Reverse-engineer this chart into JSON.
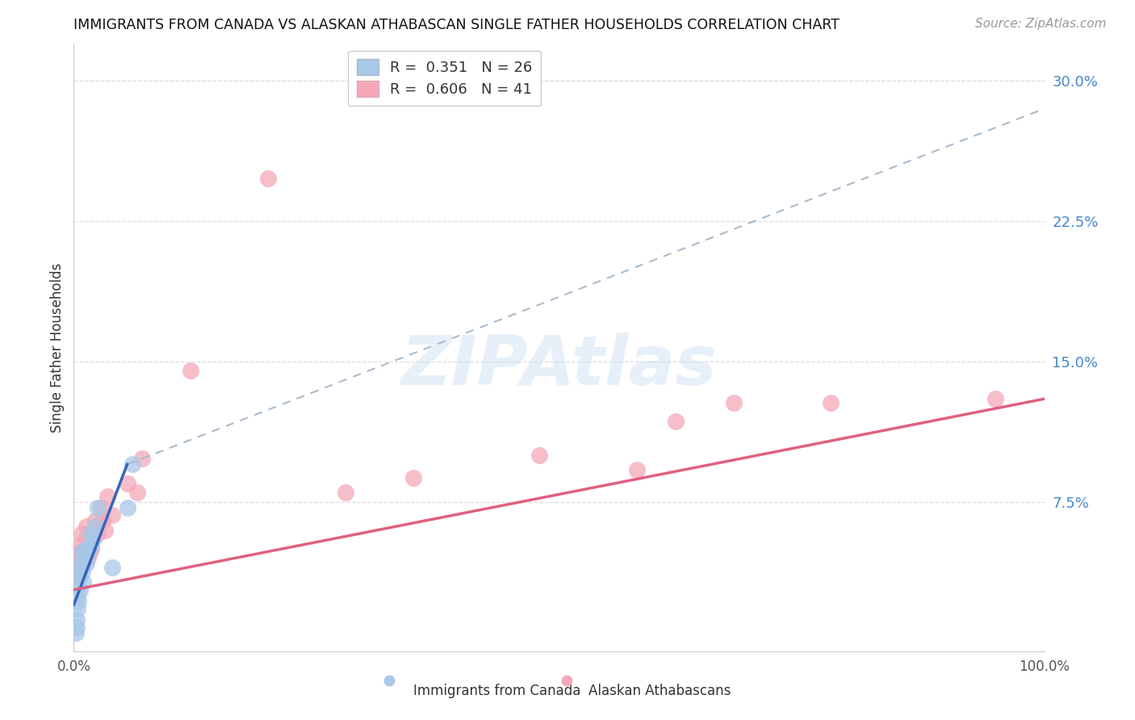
{
  "title": "IMMIGRANTS FROM CANADA VS ALASKAN ATHABASCAN SINGLE FATHER HOUSEHOLDS CORRELATION CHART",
  "source": "Source: ZipAtlas.com",
  "ylabel": "Single Father Households",
  "xlim": [
    0.0,
    1.0
  ],
  "ylim": [
    -0.005,
    0.32
  ],
  "y_tick_values_right": [
    0.075,
    0.15,
    0.225,
    0.3
  ],
  "y_tick_labels_right": [
    "7.5%",
    "15.0%",
    "22.5%",
    "30.0%"
  ],
  "x_tick_values": [
    0.0,
    1.0
  ],
  "x_tick_labels": [
    "0.0%",
    "100.0%"
  ],
  "legend_blue_label": "R =  0.351   N = 26",
  "legend_pink_label": "R =  0.606   N = 41",
  "blue_dot_color": "#A8C8E8",
  "pink_dot_color": "#F4A8B8",
  "blue_line_color": "#3366BB",
  "pink_line_color": "#E06080",
  "blue_dash_color": "#AABBCC",
  "watermark": "ZIPAtlas",
  "watermark_color": "#C5D8EE",
  "background_color": "#FFFFFF",
  "grid_color": "#DDDDDD",
  "blue_dots_x": [
    0.002,
    0.003,
    0.003,
    0.004,
    0.004,
    0.005,
    0.005,
    0.006,
    0.006,
    0.007,
    0.008,
    0.008,
    0.009,
    0.01,
    0.011,
    0.012,
    0.013,
    0.015,
    0.017,
    0.018,
    0.02,
    0.022,
    0.025,
    0.04,
    0.055,
    0.06
  ],
  "blue_dots_y": [
    0.005,
    0.008,
    0.012,
    0.018,
    0.025,
    0.022,
    0.03,
    0.028,
    0.035,
    0.04,
    0.042,
    0.048,
    0.038,
    0.032,
    0.045,
    0.05,
    0.042,
    0.048,
    0.058,
    0.052,
    0.055,
    0.062,
    0.072,
    0.04,
    0.072,
    0.095
  ],
  "pink_dots_x": [
    0.002,
    0.003,
    0.003,
    0.004,
    0.005,
    0.005,
    0.006,
    0.006,
    0.007,
    0.008,
    0.008,
    0.009,
    0.01,
    0.011,
    0.012,
    0.013,
    0.015,
    0.016,
    0.017,
    0.018,
    0.02,
    0.022,
    0.025,
    0.028,
    0.03,
    0.032,
    0.035,
    0.04,
    0.055,
    0.065,
    0.07,
    0.12,
    0.2,
    0.28,
    0.35,
    0.48,
    0.58,
    0.62,
    0.68,
    0.78,
    0.95
  ],
  "pink_dots_y": [
    0.04,
    0.035,
    0.042,
    0.038,
    0.045,
    0.038,
    0.048,
    0.052,
    0.04,
    0.045,
    0.058,
    0.048,
    0.042,
    0.05,
    0.055,
    0.062,
    0.045,
    0.048,
    0.058,
    0.05,
    0.055,
    0.065,
    0.058,
    0.072,
    0.065,
    0.06,
    0.078,
    0.068,
    0.085,
    0.08,
    0.098,
    0.145,
    0.248,
    0.08,
    0.088,
    0.1,
    0.092,
    0.118,
    0.128,
    0.128,
    0.13
  ],
  "blue_solid_line": [
    [
      0.0,
      0.055
    ],
    [
      0.02,
      0.095
    ]
  ],
  "blue_dash_line": [
    [
      0.055,
      1.0
    ],
    [
      0.095,
      0.285
    ]
  ],
  "pink_solid_line": [
    [
      0.0,
      1.0
    ],
    [
      0.028,
      0.13
    ]
  ]
}
